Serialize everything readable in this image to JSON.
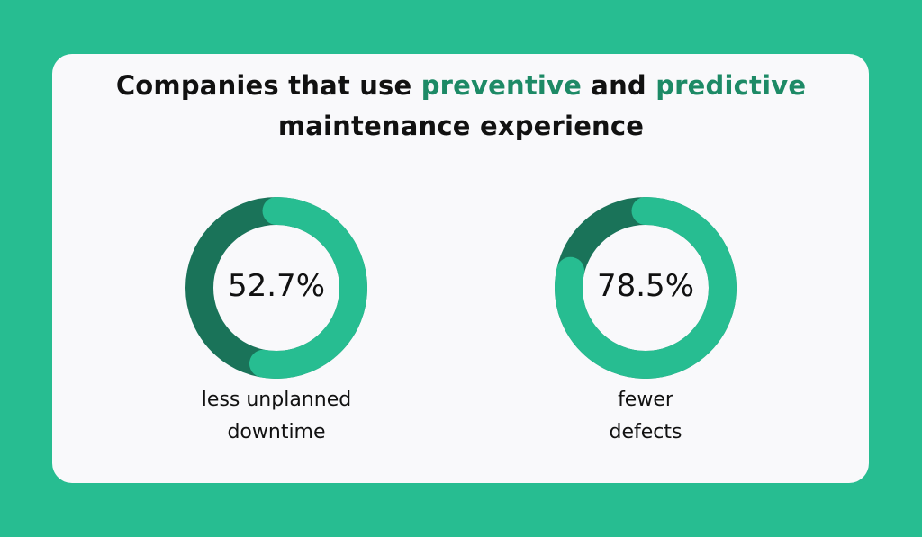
{
  "title": {
    "line1_a": "Companies that use ",
    "line1_b": "preventive",
    "line1_c": " and ",
    "line1_d": "predictive",
    "line2": "maintenance experience"
  },
  "colors": {
    "background": "#27bd91",
    "track": "#1a7359",
    "arc": "#27bd91",
    "highlight": "#1d8a66"
  },
  "chart_data": [
    {
      "type": "pie",
      "style": "donut",
      "title": "",
      "values": [
        52.7,
        47.3
      ],
      "labels": [
        "less unplanned downtime",
        "remainder"
      ],
      "value_label": "52.7%",
      "caption_line1": "less unplanned",
      "caption_line2": "downtime"
    },
    {
      "type": "pie",
      "style": "donut",
      "title": "",
      "values": [
        78.5,
        21.5
      ],
      "labels": [
        "fewer defects",
        "remainder"
      ],
      "value_label": "78.5%",
      "caption_line1": "fewer",
      "caption_line2": "defects"
    }
  ]
}
